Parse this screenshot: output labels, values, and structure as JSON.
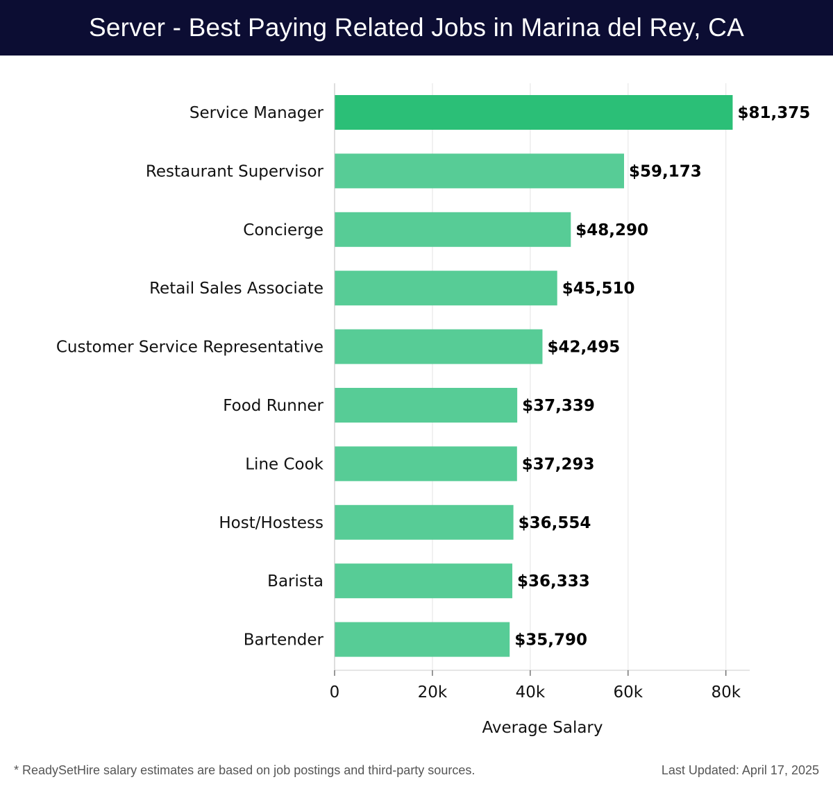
{
  "header": {
    "title": "Server - Best Paying Related Jobs in Marina del Rey, CA"
  },
  "footer": {
    "note": "* ReadySetHire salary estimates are based on job postings and third-party sources.",
    "updated": "Last Updated: April 17, 2025"
  },
  "colors": {
    "header_bg": "#0c0d33",
    "bar_top": "#2bbf77",
    "bar": "#57cc96"
  },
  "chart_data": {
    "type": "bar",
    "orientation": "horizontal",
    "title": "Server - Best Paying Related Jobs in Marina del Rey, CA",
    "xlabel": "Average Salary",
    "ylabel": "",
    "xlim": [
      0,
      85000
    ],
    "xticks": [
      0,
      20000,
      40000,
      60000,
      80000
    ],
    "xtick_labels": [
      "0",
      "20k",
      "40k",
      "60k",
      "80k"
    ],
    "grid": "vertical",
    "categories": [
      "Service Manager",
      "Restaurant Supervisor",
      "Concierge",
      "Retail Sales Associate",
      "Customer Service Representative",
      "Food Runner",
      "Line Cook",
      "Host/Hostess",
      "Barista",
      "Bartender"
    ],
    "values": [
      81375,
      59173,
      48290,
      45510,
      42495,
      37339,
      37293,
      36554,
      36333,
      35790
    ],
    "value_labels": [
      "$81,375",
      "$59,173",
      "$48,290",
      "$45,510",
      "$42,495",
      "$37,339",
      "$37,293",
      "$36,554",
      "$36,333",
      "$35,790"
    ]
  }
}
